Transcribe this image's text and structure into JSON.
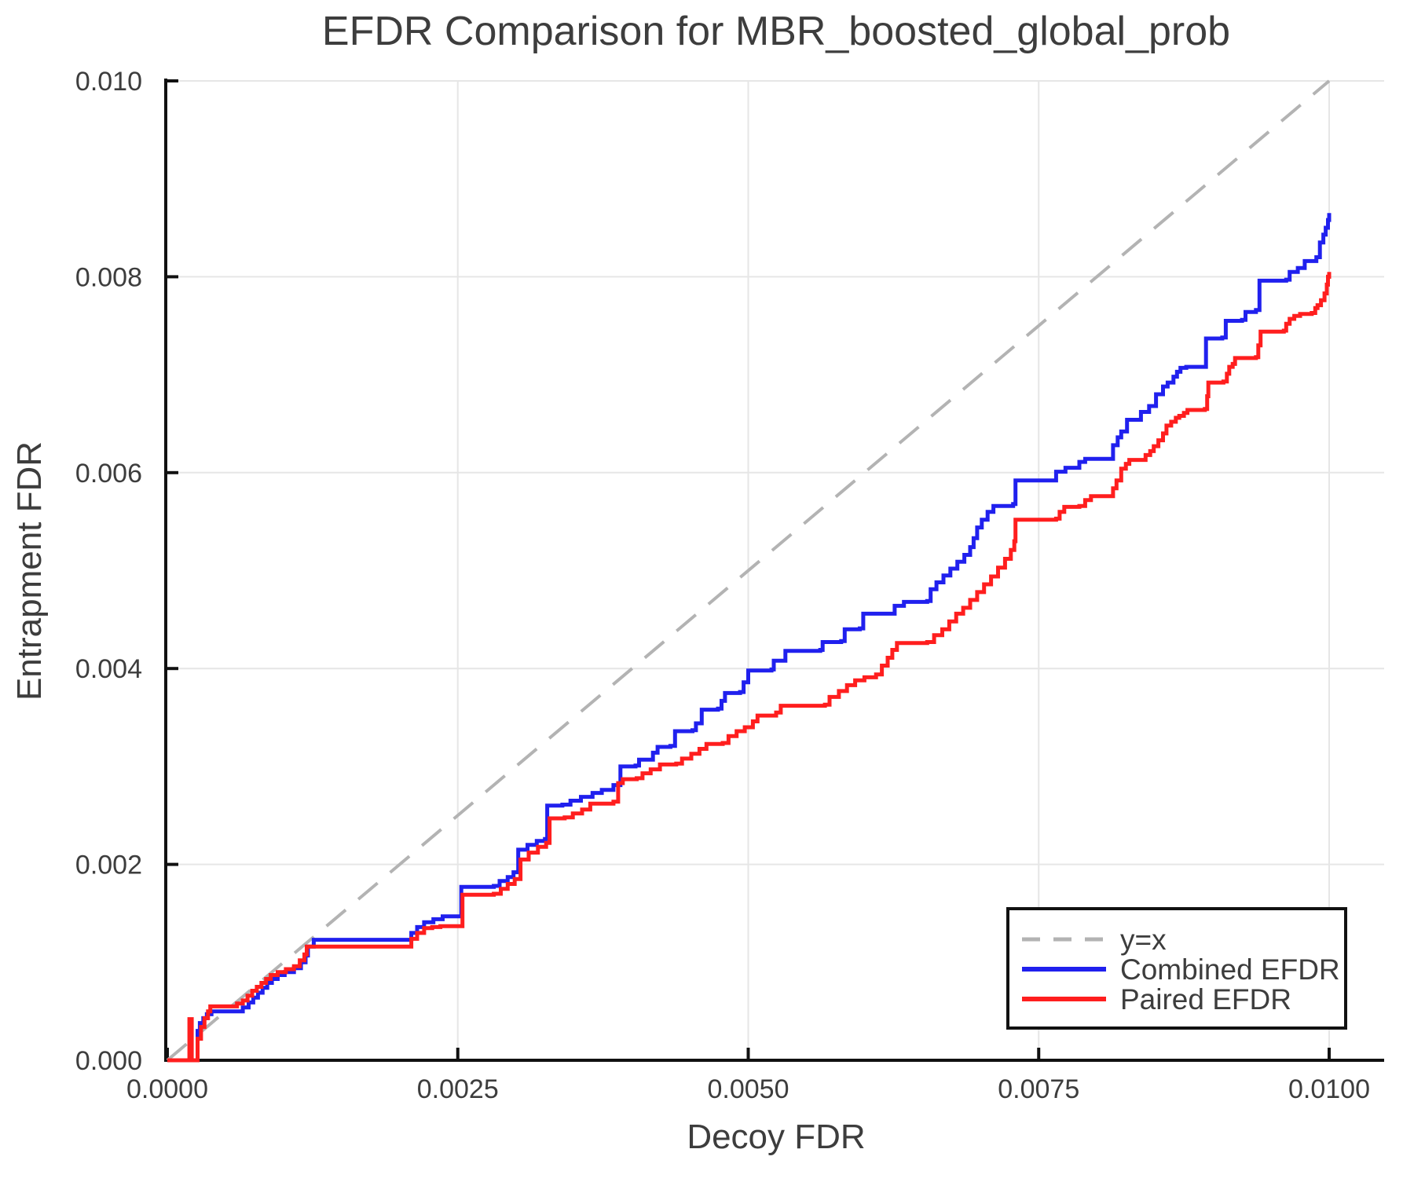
{
  "chart_data": {
    "type": "line",
    "title": "EFDR Comparison for MBR_boosted_global_prob",
    "xlabel": "Decoy FDR",
    "ylabel": "Entrapment FDR",
    "xlim": [
      0.0,
      0.01047
    ],
    "ylim": [
      0.0,
      0.01014
    ],
    "grid": true,
    "background": "#ffffff",
    "grid_color": "#e6e6e6",
    "spine_color": "#111111",
    "text_color": "#3d3d3d",
    "x_ticks": {
      "values": [
        0.0,
        0.0025,
        0.005,
        0.0075,
        0.01
      ],
      "labels": [
        "0.0000",
        "0.0025",
        "0.0050",
        "0.0075",
        "0.0100"
      ]
    },
    "y_ticks": {
      "values": [
        0.0,
        0.002,
        0.004,
        0.006,
        0.008,
        0.01
      ],
      "labels": [
        "0.000",
        "0.002",
        "0.004",
        "0.006",
        "0.008",
        "0.010"
      ]
    },
    "legend": {
      "position": "lower right",
      "border_color": "#111111",
      "fill": "#ffffff"
    },
    "series": [
      {
        "name": "y=x",
        "color": "#b3b3b3",
        "style": "dashed",
        "width": 4,
        "interpolation": "linear",
        "points": [
          [
            0.0,
            0.0
          ],
          [
            0.01,
            0.01
          ]
        ]
      },
      {
        "name": "Combined EFDR",
        "color": "#2020ee",
        "style": "solid",
        "width": 5,
        "interpolation": "step",
        "points": [
          [
            0.0,
            0.0
          ],
          [
            0.00025,
            0.0
          ],
          [
            0.00026,
            0.0003
          ],
          [
            0.00028,
            0.00038
          ],
          [
            0.00031,
            0.00043
          ],
          [
            0.00034,
            0.00047
          ],
          [
            0.00038,
            0.0005
          ],
          [
            0.00062,
            0.0005
          ],
          [
            0.00065,
            0.00054
          ],
          [
            0.0007,
            0.00059
          ],
          [
            0.00074,
            0.00064
          ],
          [
            0.00078,
            0.00069
          ],
          [
            0.00082,
            0.00074
          ],
          [
            0.00086,
            0.00079
          ],
          [
            0.0009,
            0.00083
          ],
          [
            0.00095,
            0.00087
          ],
          [
            0.00101,
            0.0009
          ],
          [
            0.00109,
            0.00094
          ],
          [
            0.00115,
            0.001
          ],
          [
            0.00119,
            0.00107
          ],
          [
            0.00121,
            0.00116
          ],
          [
            0.00126,
            0.00123
          ],
          [
            0.00207,
            0.00123
          ],
          [
            0.0021,
            0.0013
          ],
          [
            0.00215,
            0.00136
          ],
          [
            0.00221,
            0.00141
          ],
          [
            0.00229,
            0.00144
          ],
          [
            0.00237,
            0.00147
          ],
          [
            0.00252,
            0.00147
          ],
          [
            0.00253,
            0.00177
          ],
          [
            0.00281,
            0.00178
          ],
          [
            0.00286,
            0.00183
          ],
          [
            0.00293,
            0.00187
          ],
          [
            0.00298,
            0.00192
          ],
          [
            0.00302,
            0.00215
          ],
          [
            0.0031,
            0.0022
          ],
          [
            0.00318,
            0.00224
          ],
          [
            0.00325,
            0.00226
          ],
          [
            0.00327,
            0.0026
          ],
          [
            0.0034,
            0.00261
          ],
          [
            0.00347,
            0.00265
          ],
          [
            0.00356,
            0.00269
          ],
          [
            0.00366,
            0.00273
          ],
          [
            0.00374,
            0.00276
          ],
          [
            0.00384,
            0.00281
          ],
          [
            0.0039,
            0.003
          ],
          [
            0.00403,
            0.00301
          ],
          [
            0.00406,
            0.00307
          ],
          [
            0.00418,
            0.00314
          ],
          [
            0.00422,
            0.0032
          ],
          [
            0.00433,
            0.00321
          ],
          [
            0.00437,
            0.00336
          ],
          [
            0.00452,
            0.00337
          ],
          [
            0.00455,
            0.00344
          ],
          [
            0.0046,
            0.00358
          ],
          [
            0.00474,
            0.00359
          ],
          [
            0.00477,
            0.00367
          ],
          [
            0.0048,
            0.00375
          ],
          [
            0.00493,
            0.00376
          ],
          [
            0.00496,
            0.00386
          ],
          [
            0.005,
            0.00398
          ],
          [
            0.0052,
            0.00399
          ],
          [
            0.00522,
            0.00408
          ],
          [
            0.00532,
            0.00418
          ],
          [
            0.00562,
            0.00419
          ],
          [
            0.00564,
            0.00427
          ],
          [
            0.0058,
            0.00428
          ],
          [
            0.00583,
            0.0044
          ],
          [
            0.00596,
            0.00441
          ],
          [
            0.00599,
            0.00456
          ],
          [
            0.00623,
            0.00456
          ],
          [
            0.00626,
            0.00464
          ],
          [
            0.00634,
            0.00468
          ],
          [
            0.00654,
            0.00469
          ],
          [
            0.00657,
            0.00481
          ],
          [
            0.00662,
            0.00488
          ],
          [
            0.00668,
            0.00495
          ],
          [
            0.00674,
            0.00502
          ],
          [
            0.0068,
            0.00509
          ],
          [
            0.00686,
            0.00516
          ],
          [
            0.00691,
            0.00524
          ],
          [
            0.00694,
            0.00533
          ],
          [
            0.00697,
            0.00544
          ],
          [
            0.00701,
            0.00552
          ],
          [
            0.00706,
            0.0056
          ],
          [
            0.00711,
            0.00566
          ],
          [
            0.00728,
            0.00568
          ],
          [
            0.0073,
            0.00592
          ],
          [
            0.00761,
            0.00592
          ],
          [
            0.00765,
            0.00601
          ],
          [
            0.00773,
            0.00605
          ],
          [
            0.00785,
            0.00611
          ],
          [
            0.0079,
            0.00614
          ],
          [
            0.00811,
            0.00614
          ],
          [
            0.00814,
            0.00628
          ],
          [
            0.00818,
            0.00636
          ],
          [
            0.00821,
            0.00642
          ],
          [
            0.00826,
            0.00654
          ],
          [
            0.00838,
            0.00662
          ],
          [
            0.00845,
            0.00668
          ],
          [
            0.00851,
            0.0068
          ],
          [
            0.00857,
            0.00688
          ],
          [
            0.00861,
            0.00692
          ],
          [
            0.00866,
            0.00698
          ],
          [
            0.00869,
            0.00703
          ],
          [
            0.00872,
            0.00707
          ],
          [
            0.00877,
            0.00708
          ],
          [
            0.00891,
            0.00708
          ],
          [
            0.00894,
            0.00737
          ],
          [
            0.00908,
            0.00738
          ],
          [
            0.00911,
            0.00755
          ],
          [
            0.00925,
            0.00756
          ],
          [
            0.00928,
            0.00764
          ],
          [
            0.00937,
            0.00766
          ],
          [
            0.0094,
            0.00796
          ],
          [
            0.00963,
            0.00797
          ],
          [
            0.00966,
            0.00805
          ],
          [
            0.00973,
            0.00809
          ],
          [
            0.00979,
            0.00816
          ],
          [
            0.00989,
            0.0082
          ],
          [
            0.00992,
            0.00835
          ],
          [
            0.00995,
            0.00843
          ],
          [
            0.00997,
            0.0085
          ],
          [
            0.00999,
            0.00858
          ],
          [
            0.01,
            0.00865
          ]
        ]
      },
      {
        "name": "Paired EFDR",
        "color": "#ff1e1e",
        "style": "solid",
        "width": 5,
        "interpolation": "step",
        "points": [
          [
            0.0,
            0.0
          ],
          [
            0.00019,
            0.0
          ],
          [
            0.00019,
            0.00042
          ],
          [
            0.0002,
            0.00042
          ],
          [
            0.00021,
            0.0
          ],
          [
            0.00024,
            0.0
          ],
          [
            0.00026,
            0.00022
          ],
          [
            0.00029,
            0.00034
          ],
          [
            0.00032,
            0.00043
          ],
          [
            0.00035,
            0.0005
          ],
          [
            0.00037,
            0.00055
          ],
          [
            0.00057,
            0.00055
          ],
          [
            0.0006,
            0.00058
          ],
          [
            0.00065,
            0.00061
          ],
          [
            0.00069,
            0.00066
          ],
          [
            0.00073,
            0.00071
          ],
          [
            0.00077,
            0.00075
          ],
          [
            0.00081,
            0.00079
          ],
          [
            0.00085,
            0.00083
          ],
          [
            0.00089,
            0.00087
          ],
          [
            0.00095,
            0.0009
          ],
          [
            0.00102,
            0.00093
          ],
          [
            0.00109,
            0.00096
          ],
          [
            0.00114,
            0.00102
          ],
          [
            0.00118,
            0.00108
          ],
          [
            0.0012,
            0.00116
          ],
          [
            0.00207,
            0.00116
          ],
          [
            0.0021,
            0.00124
          ],
          [
            0.00215,
            0.0013
          ],
          [
            0.00221,
            0.00135
          ],
          [
            0.00228,
            0.00136
          ],
          [
            0.00235,
            0.00137
          ],
          [
            0.00253,
            0.00137
          ],
          [
            0.00254,
            0.00169
          ],
          [
            0.00281,
            0.0017
          ],
          [
            0.00287,
            0.00175
          ],
          [
            0.00293,
            0.0018
          ],
          [
            0.00299,
            0.00185
          ],
          [
            0.00304,
            0.00205
          ],
          [
            0.00311,
            0.00212
          ],
          [
            0.00319,
            0.00218
          ],
          [
            0.00326,
            0.00222
          ],
          [
            0.00329,
            0.00247
          ],
          [
            0.00342,
            0.00248
          ],
          [
            0.00349,
            0.00252
          ],
          [
            0.00357,
            0.00256
          ],
          [
            0.00364,
            0.00262
          ],
          [
            0.00384,
            0.00264
          ],
          [
            0.00388,
            0.00283
          ],
          [
            0.00392,
            0.00287
          ],
          [
            0.00404,
            0.00288
          ],
          [
            0.00409,
            0.00293
          ],
          [
            0.00416,
            0.00297
          ],
          [
            0.00424,
            0.00302
          ],
          [
            0.00438,
            0.00303
          ],
          [
            0.00443,
            0.00308
          ],
          [
            0.00451,
            0.00313
          ],
          [
            0.00458,
            0.00318
          ],
          [
            0.00464,
            0.00323
          ],
          [
            0.00478,
            0.00324
          ],
          [
            0.00483,
            0.00331
          ],
          [
            0.0049,
            0.00336
          ],
          [
            0.00497,
            0.0034
          ],
          [
            0.00504,
            0.00346
          ],
          [
            0.00508,
            0.00352
          ],
          [
            0.00524,
            0.00355
          ],
          [
            0.00528,
            0.00362
          ],
          [
            0.00566,
            0.00363
          ],
          [
            0.0057,
            0.00371
          ],
          [
            0.00578,
            0.00377
          ],
          [
            0.00585,
            0.00383
          ],
          [
            0.00592,
            0.00388
          ],
          [
            0.006,
            0.00391
          ],
          [
            0.0061,
            0.00394
          ],
          [
            0.00615,
            0.00403
          ],
          [
            0.0062,
            0.00411
          ],
          [
            0.00624,
            0.00419
          ],
          [
            0.00628,
            0.00426
          ],
          [
            0.00654,
            0.00427
          ],
          [
            0.0066,
            0.00434
          ],
          [
            0.00667,
            0.0044
          ],
          [
            0.00673,
            0.00448
          ],
          [
            0.00679,
            0.00456
          ],
          [
            0.00685,
            0.00462
          ],
          [
            0.00691,
            0.0047
          ],
          [
            0.00697,
            0.00478
          ],
          [
            0.00703,
            0.00486
          ],
          [
            0.00709,
            0.00494
          ],
          [
            0.00715,
            0.00503
          ],
          [
            0.00721,
            0.00512
          ],
          [
            0.00726,
            0.00521
          ],
          [
            0.00729,
            0.0053
          ],
          [
            0.0073,
            0.00552
          ],
          [
            0.00765,
            0.00553
          ],
          [
            0.00768,
            0.0056
          ],
          [
            0.00772,
            0.00565
          ],
          [
            0.00785,
            0.00566
          ],
          [
            0.0079,
            0.00572
          ],
          [
            0.00795,
            0.00576
          ],
          [
            0.00811,
            0.00576
          ],
          [
            0.00814,
            0.00584
          ],
          [
            0.00817,
            0.00592
          ],
          [
            0.00821,
            0.00604
          ],
          [
            0.00825,
            0.00609
          ],
          [
            0.00828,
            0.00613
          ],
          [
            0.00838,
            0.00613
          ],
          [
            0.00842,
            0.00618
          ],
          [
            0.00846,
            0.00622
          ],
          [
            0.00849,
            0.00627
          ],
          [
            0.00853,
            0.00633
          ],
          [
            0.00857,
            0.0064
          ],
          [
            0.0086,
            0.00648
          ],
          [
            0.00864,
            0.00652
          ],
          [
            0.00868,
            0.00656
          ],
          [
            0.00871,
            0.00658
          ],
          [
            0.00875,
            0.00661
          ],
          [
            0.00878,
            0.00664
          ],
          [
            0.00893,
            0.00665
          ],
          [
            0.00895,
            0.00678
          ],
          [
            0.00896,
            0.00692
          ],
          [
            0.00909,
            0.00693
          ],
          [
            0.00912,
            0.00701
          ],
          [
            0.00914,
            0.00708
          ],
          [
            0.00917,
            0.00711
          ],
          [
            0.00919,
            0.00717
          ],
          [
            0.00937,
            0.00718
          ],
          [
            0.00939,
            0.0073
          ],
          [
            0.00941,
            0.00744
          ],
          [
            0.00961,
            0.00745
          ],
          [
            0.00963,
            0.00752
          ],
          [
            0.00966,
            0.00757
          ],
          [
            0.0097,
            0.0076
          ],
          [
            0.00975,
            0.00762
          ],
          [
            0.00985,
            0.00763
          ],
          [
            0.00988,
            0.00768
          ],
          [
            0.0099,
            0.00771
          ],
          [
            0.00993,
            0.00776
          ],
          [
            0.00996,
            0.00783
          ],
          [
            0.00998,
            0.00792
          ],
          [
            0.00999,
            0.008
          ],
          [
            0.01,
            0.00805
          ]
        ]
      }
    ]
  }
}
